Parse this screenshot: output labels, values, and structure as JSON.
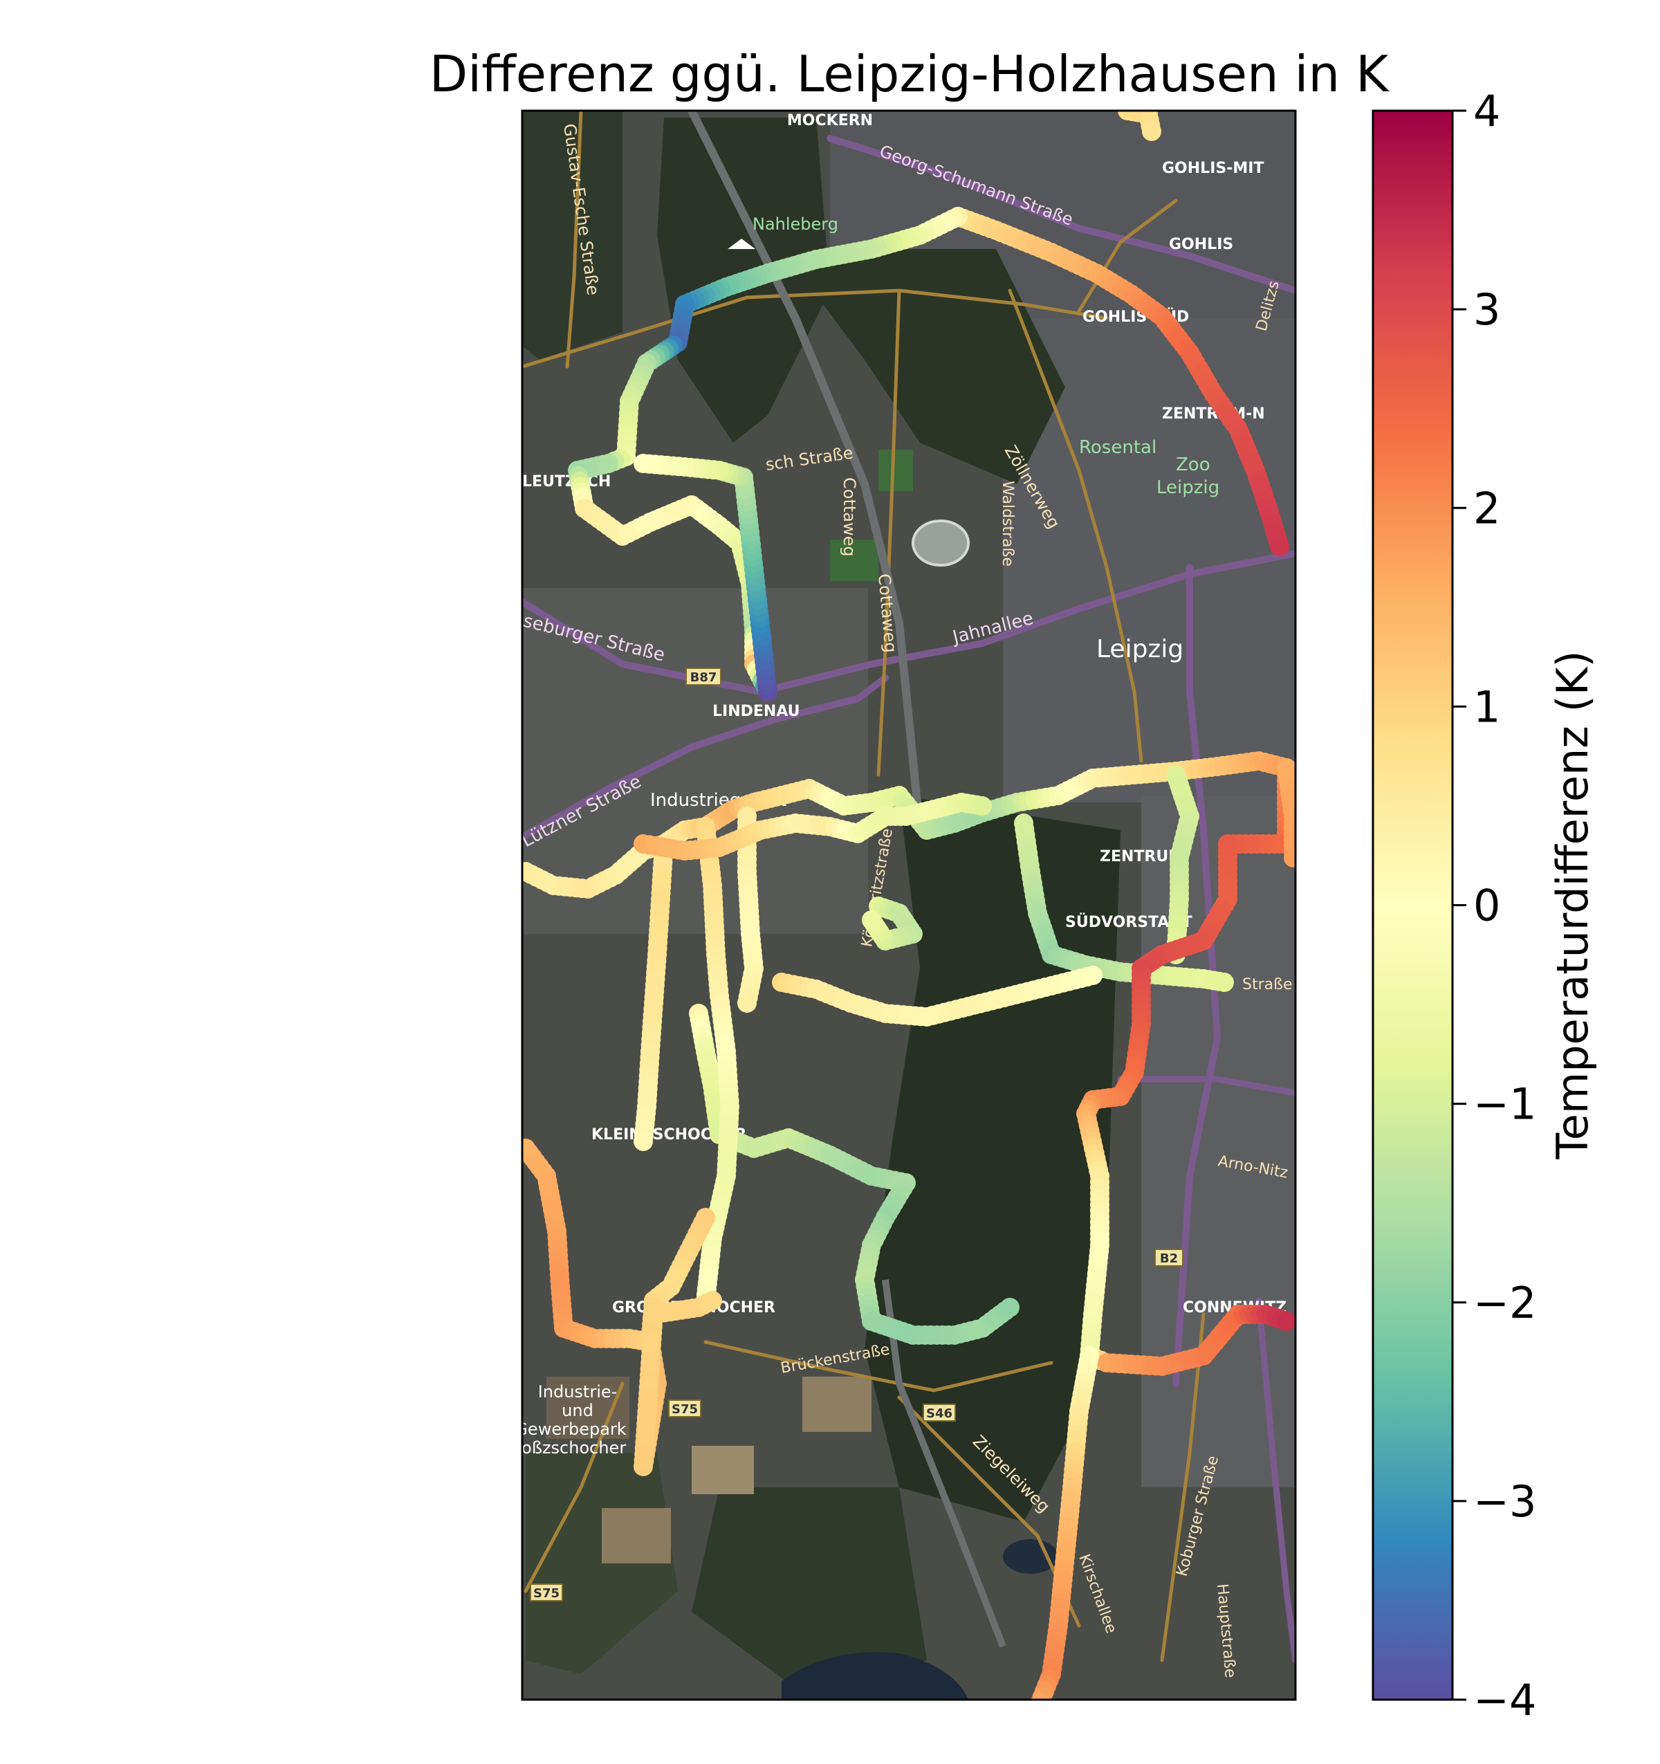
{
  "title": "Differenz ggü. Leipzig-Holzhausen in K",
  "colorbar": {
    "label": "Temperaturdifferenz (K)",
    "min": -4,
    "max": 4,
    "ticks": [
      {
        "value": 4,
        "text": "4"
      },
      {
        "value": 3,
        "text": "3"
      },
      {
        "value": 2,
        "text": "2"
      },
      {
        "value": 1,
        "text": "1"
      },
      {
        "value": 0,
        "text": "0"
      },
      {
        "value": -1,
        "text": "−1"
      },
      {
        "value": -2,
        "text": "−2"
      },
      {
        "value": -3,
        "text": "−3"
      },
      {
        "value": -4,
        "text": "−4"
      }
    ],
    "colormap": "Spectral_r",
    "stops": [
      "#5e4fa2",
      "#3288bd",
      "#66c2a5",
      "#abdda4",
      "#e6f598",
      "#ffffbf",
      "#fee08b",
      "#fdae61",
      "#f46d43",
      "#d53e4f",
      "#9e0142"
    ]
  },
  "map_labels": {
    "mockern": "MOCKERN",
    "gohlis_mitte": "GOHLIS-MIT",
    "gohlis": "GOHLIS",
    "gohlis_sued": "GOHLIS-SÜD",
    "zentrum_nord": "ZENTRUM-N",
    "nahleberg": "Nahleberg",
    "georg_schumann": "Georg-Schumann Straße",
    "gustav_esche": "Gustav-Esche Straße",
    "rosental": "Rosental",
    "zoo": "Zoo",
    "leipzig_zoo": "Leipzig",
    "leutzsch": "LEUTZSCH",
    "lisch_strasse": "sch Straße",
    "zoellnerweg": "Zöllnerweg",
    "waldstrasse": "Waldstraße",
    "cottaweg1": "Cottaweg",
    "cottaweg2": "Cottaweg",
    "merseburger": "seburger Straße",
    "jahnallee": "Jahnallee",
    "leipzig": "Leipzig",
    "b87": "B87",
    "lindenau": "LINDENAU",
    "lutzner": "Lützner Straße",
    "industriegebiet": "Industriegebiet",
    "zentrum": "ZENTRUM",
    "suedvorstadt": "SÜDVORSTADT",
    "koennerit": "Könneritzstraße",
    "strasse": "Straße",
    "kleinzschocher": "KLEINZSCHOCHER",
    "arno_nitzsche": "Arno-Nitz",
    "b2": "B2",
    "grosszschocher": "GROSSZSCHOCHER",
    "connewitz": "CONNEWITZ",
    "brueckenstrasse": "Brückenstraße",
    "industrie1": "Industrie-",
    "industrie2": "und",
    "industrie3": "Gewerbepark",
    "industrie4": "roßzschocher",
    "s75a": "S75",
    "s46": "S46",
    "ziegeleiweg": "Ziegeleiweg",
    "koburger": "Koburger Straße",
    "kirschallee": "Kirschallee",
    "hauptstrasse": "Hauptstraße",
    "s75b": "S75",
    "delitzscher": "Delitzs"
  },
  "tracks": [
    {
      "name": "north-loop-east",
      "points": [
        [
          1385,
          313
        ],
        [
          1440,
          333
        ],
        [
          1520,
          365
        ],
        [
          1585,
          395
        ],
        [
          1635,
          425
        ],
        [
          1680,
          458
        ],
        [
          1720,
          510
        ],
        [
          1755,
          570
        ],
        [
          1790,
          620
        ],
        [
          1815,
          680
        ],
        [
          1835,
          740
        ],
        [
          1850,
          790
        ]
      ],
      "values": [
        0.7,
        1.0,
        1.3,
        1.6,
        1.9,
        2.2,
        2.5,
        2.7,
        2.9,
        3.0,
        3.2,
        3.3
      ]
    },
    {
      "name": "north-loop-west",
      "points": [
        [
          1385,
          313
        ],
        [
          1330,
          340
        ],
        [
          1260,
          360
        ],
        [
          1180,
          375
        ],
        [
          1110,
          395
        ],
        [
          1050,
          415
        ],
        [
          990,
          440
        ],
        [
          980,
          495
        ],
        [
          935,
          525
        ],
        [
          910,
          580
        ],
        [
          905,
          660
        ]
      ],
      "values": [
        0.3,
        -0.5,
        -1.2,
        -1.5,
        -1.8,
        -2.3,
        -3.2,
        -3.6,
        -1.5,
        -1.0,
        -0.5
      ]
    },
    {
      "name": "leutzsch-loop",
      "points": [
        [
          905,
          660
        ],
        [
          880,
          670
        ],
        [
          835,
          680
        ],
        [
          845,
          735
        ],
        [
          900,
          775
        ],
        [
          940,
          755
        ],
        [
          1000,
          730
        ],
        [
          1040,
          760
        ],
        [
          1070,
          785
        ],
        [
          1085,
          845
        ],
        [
          1090,
          910
        ],
        [
          1090,
          960
        ],
        [
          1110,
          1000
        ],
        [
          1075,
          690
        ],
        [
          1040,
          680
        ],
        [
          990,
          675
        ],
        [
          930,
          670
        ]
      ],
      "values": [
        -0.5,
        -1.5,
        -1.7,
        0.5,
        0.3,
        0.1,
        0.2,
        -0.2,
        -0.6,
        -0.9,
        -1.5,
        1.3,
        -4.0,
        -1.4,
        -0.8,
        -0.3,
        0.0
      ]
    },
    {
      "name": "west-lutzner",
      "points": [
        [
          760,
          1260
        ],
        [
          800,
          1280
        ],
        [
          850,
          1285
        ],
        [
          890,
          1265
        ],
        [
          930,
          1230
        ],
        [
          960,
          1220
        ],
        [
          990,
          1200
        ],
        [
          1020,
          1195
        ],
        [
          1060,
          1170
        ],
        [
          1090,
          1160
        ],
        [
          1130,
          1150
        ],
        [
          1170,
          1140
        ]
      ],
      "values": [
        0.5,
        0.4,
        0.6,
        0.4,
        0.3,
        0.4,
        0.7,
        1.2,
        1.5,
        1.0,
        0.8,
        0.6
      ]
    },
    {
      "name": "center-east-main",
      "points": [
        [
          1170,
          1140
        ],
        [
          1220,
          1165
        ],
        [
          1260,
          1160
        ],
        [
          1300,
          1150
        ],
        [
          1340,
          1200
        ],
        [
          1380,
          1190
        ],
        [
          1420,
          1175
        ],
        [
          1470,
          1160
        ],
        [
          1530,
          1150
        ],
        [
          1580,
          1125
        ],
        [
          1640,
          1120
        ],
        [
          1700,
          1115
        ],
        [
          1760,
          1108
        ],
        [
          1820,
          1100
        ],
        [
          1860,
          1110
        ]
      ],
      "values": [
        0.6,
        -0.3,
        -0.6,
        -0.8,
        -1.3,
        -1.6,
        -1.7,
        -1.2,
        -0.3,
        0.3,
        0.6,
        0.8,
        1.2,
        1.6,
        1.8
      ]
    },
    {
      "name": "south-vorstadt-green",
      "points": [
        [
          1480,
          1190
        ],
        [
          1490,
          1260
        ],
        [
          1500,
          1320
        ],
        [
          1520,
          1380
        ],
        [
          1570,
          1395
        ],
        [
          1620,
          1405
        ],
        [
          1680,
          1410
        ],
        [
          1740,
          1415
        ],
        [
          1770,
          1420
        ]
      ],
      "values": [
        -1.0,
        -1.2,
        -1.5,
        -1.8,
        -1.5,
        -1.3,
        -0.9,
        -0.7,
        -0.8
      ]
    },
    {
      "name": "east-green-vertical",
      "points": [
        [
          1700,
          1120
        ],
        [
          1720,
          1180
        ],
        [
          1705,
          1240
        ],
        [
          1705,
          1300
        ],
        [
          1700,
          1380
        ]
      ],
      "values": [
        -0.9,
        -1.0,
        -1.2,
        -1.0,
        -0.8
      ]
    },
    {
      "name": "east-red-route",
      "points": [
        [
          1860,
          1120
        ],
        [
          1860,
          1220
        ],
        [
          1775,
          1220
        ],
        [
          1775,
          1300
        ],
        [
          1740,
          1360
        ],
        [
          1680,
          1380
        ],
        [
          1650,
          1400
        ],
        [
          1650,
          1480
        ],
        [
          1640,
          1550
        ],
        [
          1620,
          1585
        ],
        [
          1580,
          1590
        ],
        [
          1570,
          1610
        ],
        [
          1590,
          1700
        ],
        [
          1590,
          1800
        ],
        [
          1580,
          1900
        ],
        [
          1575,
          1960
        ],
        [
          1600,
          1970
        ],
        [
          1680,
          1975
        ],
        [
          1740,
          1960
        ],
        [
          1790,
          1900
        ],
        [
          1830,
          1900
        ],
        [
          1860,
          1910
        ]
      ],
      "values": [
        2.0,
        2.4,
        2.7,
        2.6,
        2.8,
        2.9,
        3.0,
        2.7,
        2.4,
        2.2,
        2.0,
        1.6,
        0.5,
        0.0,
        -0.3,
        -0.5,
        1.7,
        2.0,
        2.2,
        2.4,
        3.2,
        3.4
      ]
    },
    {
      "name": "south-long",
      "points": [
        [
          1575,
          1960
        ],
        [
          1560,
          2040
        ],
        [
          1550,
          2150
        ],
        [
          1540,
          2250
        ],
        [
          1530,
          2350
        ],
        [
          1520,
          2420
        ],
        [
          1500,
          2470
        ],
        [
          1480,
          2490
        ],
        [
          1430,
          2490
        ]
      ],
      "values": [
        0.0,
        0.5,
        1.2,
        1.6,
        1.9,
        2.1,
        1.6,
        1.2,
        1.0
      ]
    },
    {
      "name": "center-south-loop",
      "points": [
        [
          1130,
          1420
        ],
        [
          1180,
          1430
        ],
        [
          1230,
          1450
        ],
        [
          1280,
          1465
        ],
        [
          1340,
          1470
        ],
        [
          1400,
          1455
        ],
        [
          1460,
          1440
        ],
        [
          1520,
          1425
        ],
        [
          1580,
          1410
        ]
      ],
      "values": [
        0.9,
        0.5,
        0.4,
        0.3,
        0.2,
        0.3,
        0.2,
        0.1,
        0.0
      ]
    },
    {
      "name": "connewitz-green-loop",
      "points": [
        [
          1270,
          1310
        ],
        [
          1300,
          1320
        ],
        [
          1320,
          1350
        ],
        [
          1280,
          1360
        ],
        [
          1260,
          1330
        ]
      ],
      "values": [
        -0.8,
        -1.2,
        -1.3,
        -1.0,
        -0.6
      ]
    },
    {
      "name": "sued-green-west",
      "points": [
        [
          1010,
          1465
        ],
        [
          1020,
          1520
        ],
        [
          1030,
          1570
        ],
        [
          1040,
          1640
        ],
        [
          1090,
          1660
        ],
        [
          1140,
          1645
        ],
        [
          1200,
          1670
        ],
        [
          1260,
          1700
        ],
        [
          1310,
          1710
        ],
        [
          1280,
          1760
        ],
        [
          1260,
          1800
        ],
        [
          1250,
          1850
        ],
        [
          1260,
          1910
        ],
        [
          1320,
          1930
        ],
        [
          1380,
          1930
        ],
        [
          1420,
          1920
        ],
        [
          1460,
          1890
        ]
      ],
      "values": [
        0.3,
        -0.5,
        -0.7,
        -0.9,
        -1.2,
        -1.1,
        -1.5,
        -1.7,
        -1.6,
        -1.8,
        -1.5,
        -1.3,
        -1.8,
        -1.9,
        -1.8,
        -1.7,
        -1.9
      ]
    },
    {
      "name": "west-vertical-a",
      "points": [
        [
          960,
          1220
        ],
        [
          955,
          1300
        ],
        [
          950,
          1380
        ],
        [
          945,
          1450
        ],
        [
          940,
          1520
        ],
        [
          935,
          1600
        ],
        [
          930,
          1650
        ]
      ],
      "values": [
        0.6,
        0.8,
        0.7,
        0.6,
        0.5,
        0.3,
        0.2
      ]
    },
    {
      "name": "west-vertical-b",
      "points": [
        [
          1020,
          1195
        ],
        [
          1030,
          1280
        ],
        [
          1035,
          1380
        ],
        [
          1040,
          1440
        ],
        [
          1050,
          1520
        ],
        [
          1055,
          1600
        ],
        [
          1050,
          1700
        ],
        [
          1030,
          1790
        ],
        [
          1020,
          1880
        ]
      ],
      "values": [
        0.9,
        0.7,
        0.5,
        0.3,
        0.0,
        -0.4,
        -0.5,
        -0.3,
        0.1
      ]
    },
    {
      "name": "west-vertical-c",
      "points": [
        [
          1080,
          1180
        ],
        [
          1080,
          1260
        ],
        [
          1085,
          1350
        ],
        [
          1090,
          1400
        ],
        [
          1080,
          1450
        ]
      ],
      "values": [
        0.5,
        0.3,
        0.1,
        0.2,
        0.4
      ]
    },
    {
      "name": "grosszschocher-loop",
      "points": [
        [
          1020,
          1760
        ],
        [
          1000,
          1800
        ],
        [
          970,
          1860
        ],
        [
          945,
          1880
        ],
        [
          940,
          1940
        ],
        [
          950,
          2000
        ],
        [
          940,
          2060
        ],
        [
          930,
          2120
        ],
        [
          945,
          1900
        ],
        [
          1010,
          1890
        ],
        [
          1030,
          1880
        ]
      ],
      "values": [
        1.1,
        1.0,
        0.8,
        0.9,
        1.3,
        1.4,
        1.2,
        1.1,
        1.0,
        1.0,
        0.9
      ]
    },
    {
      "name": "far-west-orange",
      "points": [
        [
          760,
          1660
        ],
        [
          790,
          1700
        ],
        [
          805,
          1780
        ],
        [
          810,
          1860
        ],
        [
          815,
          1920
        ],
        [
          860,
          1935
        ],
        [
          910,
          1935
        ],
        [
          940,
          1940
        ]
      ],
      "values": [
        1.5,
        1.6,
        1.7,
        1.9,
        1.8,
        1.6,
        1.2,
        1.0
      ]
    },
    {
      "name": "industrie-cluster",
      "points": [
        [
          930,
          1220
        ],
        [
          990,
          1230
        ],
        [
          1040,
          1225
        ],
        [
          1100,
          1200
        ],
        [
          1150,
          1190
        ],
        [
          1200,
          1195
        ],
        [
          1240,
          1205
        ],
        [
          1280,
          1180
        ],
        [
          1310,
          1180
        ],
        [
          1350,
          1170
        ],
        [
          1390,
          1160
        ],
        [
          1420,
          1165
        ]
      ],
      "values": [
        1.6,
        1.4,
        1.2,
        0.8,
        0.3,
        0.5,
        -0.3,
        -0.6,
        -0.5,
        -0.4,
        -0.7,
        -0.9
      ]
    },
    {
      "name": "top-yellow",
      "points": [
        [
          1630,
          160
        ],
        [
          1660,
          165
        ],
        [
          1665,
          190
        ]
      ],
      "values": [
        0.8,
        0.9,
        0.7
      ]
    },
    {
      "name": "east-edge-orange",
      "points": [
        [
          1860,
          1110
        ],
        [
          1870,
          1180
        ],
        [
          1870,
          1240
        ]
      ],
      "values": [
        1.6,
        1.7,
        1.8
      ]
    }
  ]
}
